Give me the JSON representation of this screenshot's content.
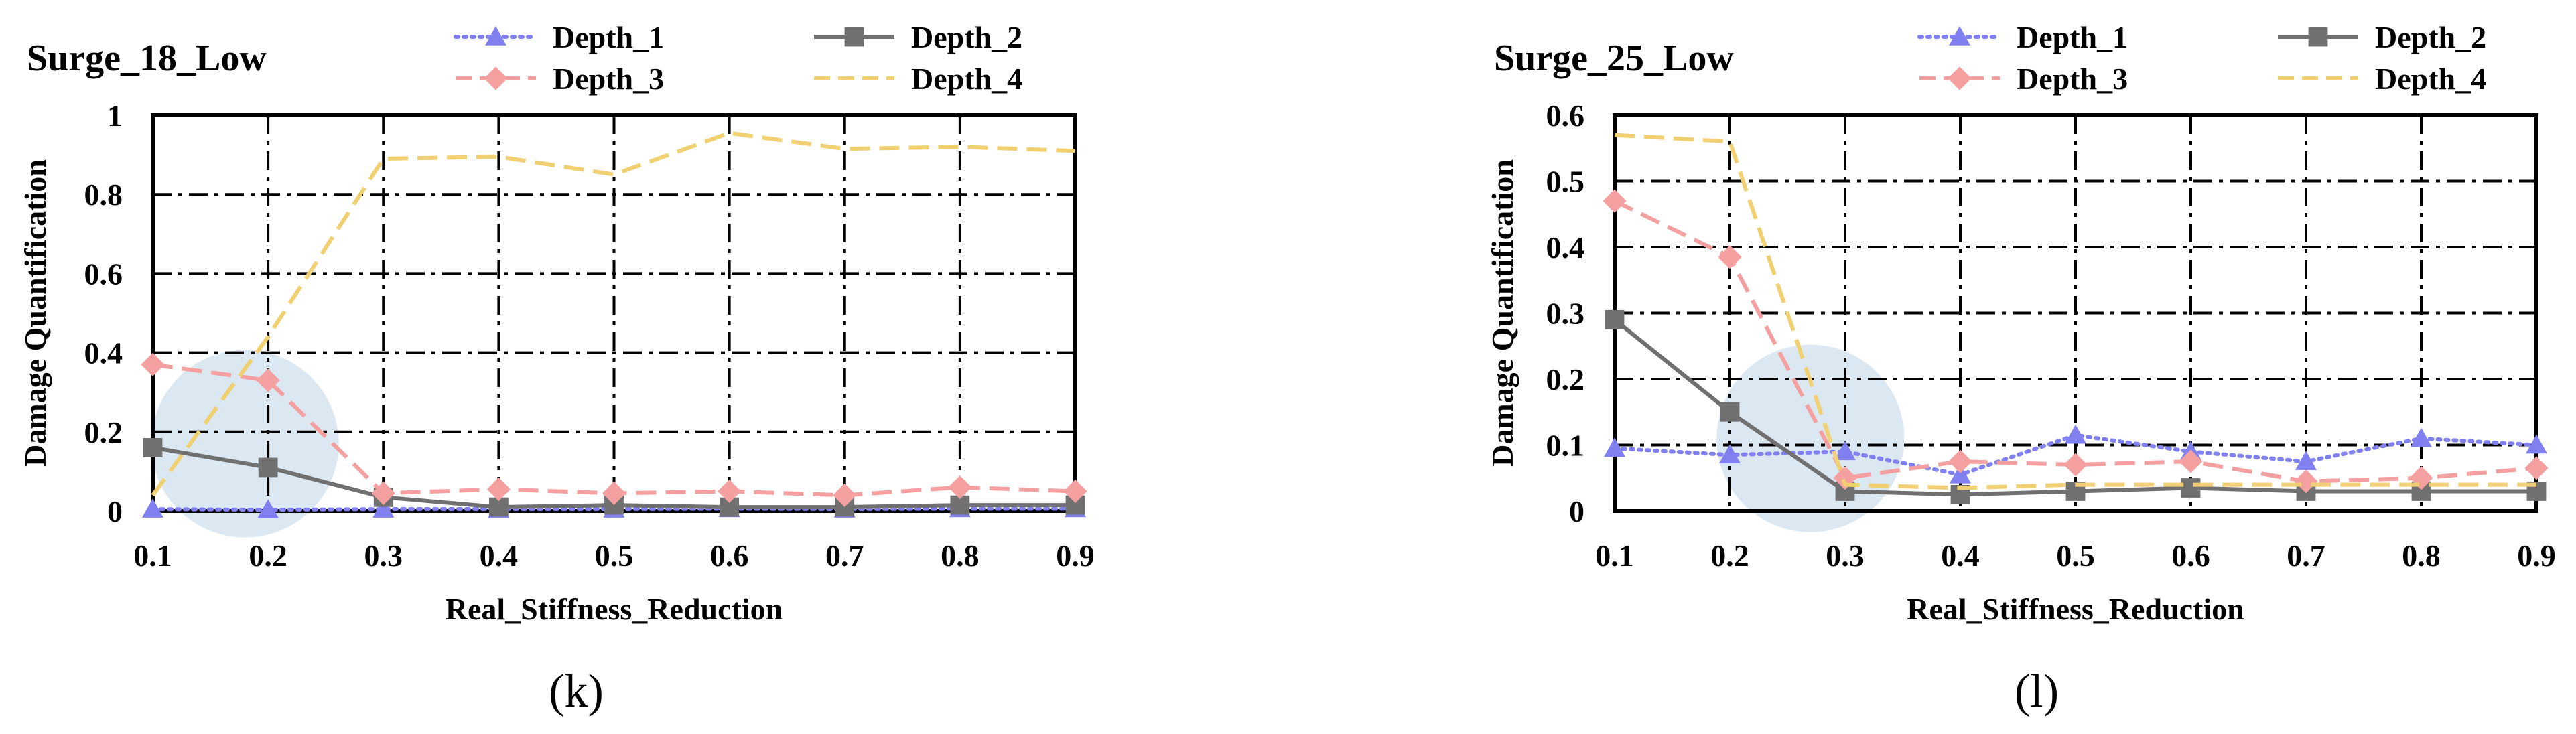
{
  "figure": {
    "panel_labels": [
      "(k)",
      "(l)"
    ]
  },
  "colors": {
    "Depth_1": "#8080f0",
    "Depth_2": "#707070",
    "Depth_3": "#f4a0a0",
    "Depth_4": "#f0d070",
    "highlight": "#cfe0ee",
    "grid": "#000000"
  },
  "chart_data": [
    {
      "type": "line",
      "title": "Surge_18_Low",
      "xlabel": "Real_Stiffness_Reduction",
      "ylabel": "Damage Quantification",
      "x": [
        0.1,
        0.2,
        0.3,
        0.4,
        0.5,
        0.6,
        0.7,
        0.8,
        0.9
      ],
      "x_ticks": [
        "0.1",
        "0.2",
        "0.3",
        "0.4",
        "0.5",
        "0.6",
        "0.7",
        "0.8",
        "0.9"
      ],
      "xlim": [
        0.1,
        0.9
      ],
      "ylim": [
        0,
        1
      ],
      "y_ticks": [
        "0",
        "0.2",
        "0.4",
        "0.6",
        "0.8",
        "1"
      ],
      "y_tick_values": [
        0,
        0.2,
        0.4,
        0.6,
        0.8,
        1.0
      ],
      "grid": "dash-dot",
      "legend_position": "top",
      "highlight": {
        "x": 0.18,
        "y": 0.17,
        "label": "circle"
      },
      "series": [
        {
          "name": "Depth_1",
          "style": "dotted",
          "marker": "triangle",
          "values": [
            0.005,
            0.003,
            0.005,
            0.005,
            0.005,
            0.006,
            0.005,
            0.006,
            0.006
          ]
        },
        {
          "name": "Depth_2",
          "style": "solid",
          "marker": "square",
          "values": [
            0.16,
            0.11,
            0.035,
            0.01,
            0.015,
            0.01,
            0.01,
            0.015,
            0.015
          ]
        },
        {
          "name": "Depth_3",
          "style": "dashed",
          "marker": "diamond",
          "values": [
            0.37,
            0.33,
            0.045,
            0.055,
            0.045,
            0.05,
            0.04,
            0.06,
            0.05
          ]
        },
        {
          "name": "Depth_4",
          "style": "dashed",
          "marker": "none",
          "values": [
            0.04,
            0.44,
            0.89,
            0.895,
            0.85,
            0.955,
            0.915,
            0.92,
            0.91
          ]
        }
      ]
    },
    {
      "type": "line",
      "title": "Surge_25_Low",
      "xlabel": "Real_Stiffness_Reduction",
      "ylabel": "Damage Quantification",
      "x": [
        0.1,
        0.2,
        0.3,
        0.4,
        0.5,
        0.6,
        0.7,
        0.8,
        0.9
      ],
      "x_ticks": [
        "0.1",
        "0.2",
        "0.3",
        "0.4",
        "0.5",
        "0.6",
        "0.7",
        "0.8",
        "0.9"
      ],
      "xlim": [
        0.1,
        0.9
      ],
      "ylim": [
        0,
        0.6
      ],
      "y_ticks": [
        "0",
        "0.1",
        "0.2",
        "0.3",
        "0.4",
        "0.5",
        "0.6"
      ],
      "y_tick_values": [
        0,
        0.1,
        0.2,
        0.3,
        0.4,
        0.5,
        0.6
      ],
      "grid": "dash-dot",
      "legend_position": "top",
      "highlight": {
        "x": 0.27,
        "y": 0.11,
        "label": "circle"
      },
      "series": [
        {
          "name": "Depth_1",
          "style": "dotted",
          "marker": "triangle",
          "values": [
            0.095,
            0.085,
            0.09,
            0.055,
            0.115,
            0.09,
            0.075,
            0.11,
            0.1
          ]
        },
        {
          "name": "Depth_2",
          "style": "solid",
          "marker": "square",
          "values": [
            0.29,
            0.15,
            0.03,
            0.025,
            0.03,
            0.035,
            0.03,
            0.03,
            0.03
          ]
        },
        {
          "name": "Depth_3",
          "style": "dashed",
          "marker": "diamond",
          "values": [
            0.47,
            0.385,
            0.05,
            0.075,
            0.07,
            0.075,
            0.045,
            0.05,
            0.065
          ]
        },
        {
          "name": "Depth_4",
          "style": "dashed",
          "marker": "none",
          "values": [
            0.57,
            0.56,
            0.04,
            0.035,
            0.04,
            0.04,
            0.04,
            0.04,
            0.04
          ]
        }
      ]
    }
  ]
}
